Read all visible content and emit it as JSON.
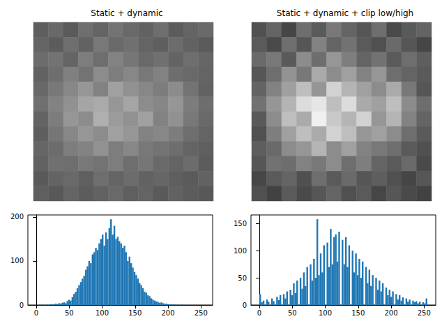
{
  "chart_data": [
    {
      "type": "heatmap",
      "title": "Static + dynamic",
      "tick_labels": false,
      "zlim": [
        0,
        255
      ],
      "cells": [
        [
          95,
          105,
          90,
          110,
          100,
          115,
          105,
          98,
          110,
          92,
          100,
          105
        ],
        [
          100,
          92,
          110,
          98,
          120,
          105,
          112,
          100,
          95,
          108,
          98,
          90
        ],
        [
          108,
          115,
          100,
          125,
          110,
          130,
          118,
          105,
          112,
          100,
          110,
          102
        ],
        [
          98,
          110,
          128,
          115,
          140,
          125,
          135,
          120,
          130,
          110,
          105,
          100
        ],
        [
          105,
          120,
          135,
          150,
          130,
          160,
          145,
          135,
          125,
          140,
          115,
          98
        ],
        [
          112,
          130,
          145,
          165,
          170,
          150,
          165,
          140,
          135,
          150,
          125,
          110
        ],
        [
          100,
          125,
          150,
          140,
          175,
          155,
          145,
          160,
          130,
          145,
          120,
          105
        ],
        [
          95,
          118,
          135,
          150,
          140,
          160,
          150,
          130,
          135,
          125,
          110,
          100
        ],
        [
          102,
          108,
          125,
          130,
          145,
          125,
          135,
          120,
          115,
          110,
          100,
          95
        ],
        [
          98,
          112,
          110,
          120,
          115,
          125,
          110,
          118,
          105,
          100,
          108,
          92
        ],
        [
          90,
          100,
          105,
          95,
          110,
          100,
          108,
          98,
          102,
          95,
          90,
          98
        ],
        [
          95,
          88,
          100,
          92,
          98,
          105,
          95,
          100,
          90,
          98,
          92,
          88
        ]
      ]
    },
    {
      "type": "heatmap",
      "title": "Static + dynamic + clip low/high",
      "tick_labels": false,
      "zlim": [
        0,
        255
      ],
      "cells": [
        [
          80,
          100,
          70,
          110,
          90,
          120,
          100,
          86,
          110,
          74,
          90,
          100
        ],
        [
          90,
          74,
          110,
          86,
          130,
          100,
          114,
          90,
          80,
          106,
          86,
          70
        ],
        [
          106,
          120,
          90,
          140,
          110,
          150,
          126,
          100,
          114,
          90,
          110,
          94
        ],
        [
          86,
          110,
          146,
          120,
          170,
          140,
          160,
          130,
          150,
          110,
          100,
          90
        ],
        [
          100,
          130,
          160,
          190,
          150,
          210,
          180,
          160,
          140,
          170,
          120,
          86
        ],
        [
          114,
          150,
          180,
          220,
          230,
          190,
          220,
          170,
          160,
          190,
          140,
          110
        ],
        [
          90,
          140,
          190,
          170,
          240,
          200,
          180,
          210,
          150,
          180,
          130,
          100
        ],
        [
          80,
          126,
          160,
          190,
          170,
          210,
          190,
          150,
          160,
          140,
          110,
          90
        ],
        [
          94,
          106,
          140,
          150,
          180,
          140,
          160,
          130,
          120,
          110,
          90,
          80
        ],
        [
          86,
          114,
          110,
          130,
          120,
          140,
          110,
          126,
          100,
          90,
          106,
          74
        ],
        [
          70,
          90,
          100,
          80,
          110,
          90,
          106,
          86,
          94,
          80,
          70,
          86
        ],
        [
          80,
          66,
          90,
          74,
          86,
          100,
          80,
          90,
          70,
          86,
          74,
          66
        ]
      ]
    },
    {
      "type": "histogram",
      "color": "#1f77b4",
      "grid": false,
      "xlim": [
        -12.75,
        267.75
      ],
      "xticks": [
        0,
        50,
        100,
        150,
        200,
        250
      ],
      "ylim": [
        0,
        204.75
      ],
      "yticks": [
        0,
        100,
        200
      ],
      "bins": [
        0,
        2.55,
        5.1,
        7.65,
        10.2,
        12.75,
        15.3,
        17.85,
        20.4,
        22.95,
        25.5,
        28.05,
        30.6,
        33.15,
        35.7,
        38.25,
        40.8,
        43.35,
        45.9,
        48.45,
        51,
        53.55,
        56.1,
        58.65,
        61.2,
        63.75,
        66.3,
        68.85,
        71.4,
        73.95,
        76.5,
        79.05,
        81.6,
        84.15,
        86.7,
        89.25,
        91.8,
        94.35,
        96.9,
        99.45,
        102,
        104.55,
        107.1,
        109.65,
        112.2,
        114.75,
        117.3,
        119.85,
        122.4,
        124.95,
        127.5,
        130.05,
        132.6,
        135.15,
        137.7,
        140.25,
        142.8,
        145.35,
        147.9,
        150.45,
        153,
        155.55,
        158.1,
        160.65,
        163.2,
        165.75,
        168.3,
        170.85,
        173.4,
        175.95,
        178.5,
        181.05,
        183.6,
        186.15,
        188.7,
        191.25,
        193.8,
        196.35,
        198.9,
        201.45,
        204,
        206.55,
        209.1,
        211.65,
        214.2,
        216.75,
        219.3,
        221.85,
        224.4,
        226.95,
        229.5,
        232.05,
        234.6,
        237.15,
        239.7,
        242.25,
        244.8,
        247.35,
        249.9,
        252.45,
        255
      ],
      "values": [
        0,
        0,
        0,
        1,
        0,
        0,
        1,
        0,
        1,
        2,
        1,
        3,
        2,
        4,
        3,
        5,
        6,
        4,
        9,
        12,
        10,
        18,
        25,
        30,
        38,
        45,
        52,
        60,
        66,
        80,
        88,
        100,
        95,
        115,
        120,
        130,
        125,
        140,
        150,
        160,
        135,
        165,
        150,
        175,
        195,
        160,
        180,
        150,
        155,
        145,
        140,
        130,
        135,
        120,
        100,
        110,
        95,
        85,
        75,
        68,
        60,
        50,
        45,
        38,
        30,
        28,
        22,
        20,
        15,
        12,
        10,
        8,
        7,
        5,
        6,
        4,
        3,
        3,
        2,
        1,
        2,
        1,
        1,
        0,
        1,
        0,
        1,
        0,
        0,
        0,
        0,
        0,
        0,
        0,
        0,
        0,
        0,
        0,
        0,
        0
      ]
    },
    {
      "type": "histogram",
      "color": "#1f77b4",
      "grid": false,
      "xlim": [
        -12.75,
        267.75
      ],
      "xticks": [
        0,
        50,
        100,
        150,
        200,
        250
      ],
      "ylim": [
        0,
        165.9
      ],
      "yticks": [
        0,
        50,
        100,
        150
      ],
      "bins": [
        0,
        2.55,
        5.1,
        7.65,
        10.2,
        12.75,
        15.3,
        17.85,
        20.4,
        22.95,
        25.5,
        28.05,
        30.6,
        33.15,
        35.7,
        38.25,
        40.8,
        43.35,
        45.9,
        48.45,
        51,
        53.55,
        56.1,
        58.65,
        61.2,
        63.75,
        66.3,
        68.85,
        71.4,
        73.95,
        76.5,
        79.05,
        81.6,
        84.15,
        86.7,
        89.25,
        91.8,
        94.35,
        96.9,
        99.45,
        102,
        104.55,
        107.1,
        109.65,
        112.2,
        114.75,
        117.3,
        119.85,
        122.4,
        124.95,
        127.5,
        130.05,
        132.6,
        135.15,
        137.7,
        140.25,
        142.8,
        145.35,
        147.9,
        150.45,
        153,
        155.55,
        158.1,
        160.65,
        163.2,
        165.75,
        168.3,
        170.85,
        173.4,
        175.95,
        178.5,
        181.05,
        183.6,
        186.15,
        188.7,
        191.25,
        193.8,
        196.35,
        198.9,
        201.45,
        204,
        206.55,
        209.1,
        211.65,
        214.2,
        216.75,
        219.3,
        221.85,
        224.4,
        226.95,
        229.5,
        232.05,
        234.6,
        237.15,
        239.7,
        242.25,
        244.8,
        247.35,
        249.9,
        252.45,
        255
      ],
      "values": [
        20,
        5,
        8,
        0,
        10,
        6,
        0,
        12,
        7,
        0,
        15,
        9,
        18,
        0,
        20,
        12,
        25,
        0,
        28,
        18,
        40,
        22,
        45,
        0,
        50,
        30,
        60,
        35,
        70,
        0,
        75,
        45,
        85,
        50,
        158,
        55,
        95,
        60,
        110,
        0,
        115,
        70,
        140,
        75,
        125,
        130,
        80,
        135,
        0,
        120,
        75,
        125,
        70,
        110,
        0,
        100,
        60,
        95,
        55,
        85,
        50,
        80,
        0,
        70,
        40,
        65,
        35,
        55,
        0,
        50,
        28,
        45,
        25,
        40,
        0,
        32,
        18,
        28,
        15,
        25,
        0,
        20,
        10,
        18,
        8,
        14,
        0,
        12,
        6,
        10,
        0,
        8,
        5,
        7,
        3,
        6,
        0,
        5,
        3,
        12
      ]
    }
  ]
}
